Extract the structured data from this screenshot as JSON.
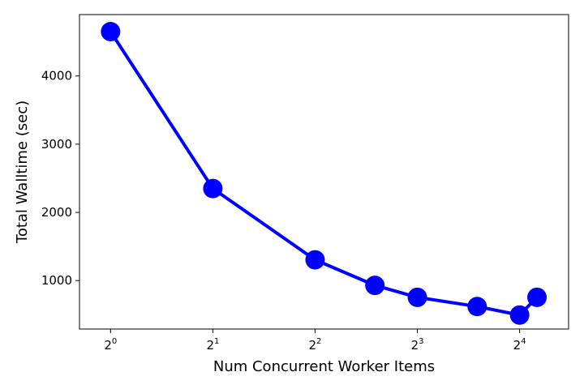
{
  "chart_data": {
    "type": "line",
    "xlabel": "Num Concurrent Worker Items",
    "ylabel": "Total Walltime (sec)",
    "x_scale": "log2",
    "xlim": [
      0.81,
      22.3
    ],
    "ylim": [
      290,
      4900
    ],
    "x_ticks": [
      {
        "value": 1,
        "base": "2",
        "exp": "0"
      },
      {
        "value": 2,
        "base": "2",
        "exp": "1"
      },
      {
        "value": 4,
        "base": "2",
        "exp": "2"
      },
      {
        "value": 8,
        "base": "2",
        "exp": "3"
      },
      {
        "value": 16,
        "base": "2",
        "exp": "4"
      }
    ],
    "y_ticks": [
      {
        "value": 1000,
        "label": "1000"
      },
      {
        "value": 2000,
        "label": "2000"
      },
      {
        "value": 3000,
        "label": "3000"
      },
      {
        "value": 4000,
        "label": "4000"
      }
    ],
    "grid": false,
    "series": [
      {
        "color": "#0000ff",
        "points": [
          {
            "x": 1,
            "y": 4650
          },
          {
            "x": 2,
            "y": 2350
          },
          {
            "x": 4,
            "y": 1305
          },
          {
            "x": 6,
            "y": 930
          },
          {
            "x": 8,
            "y": 755
          },
          {
            "x": 12,
            "y": 620
          },
          {
            "x": 16,
            "y": 495
          },
          {
            "x": 18,
            "y": 755
          }
        ]
      }
    ]
  }
}
